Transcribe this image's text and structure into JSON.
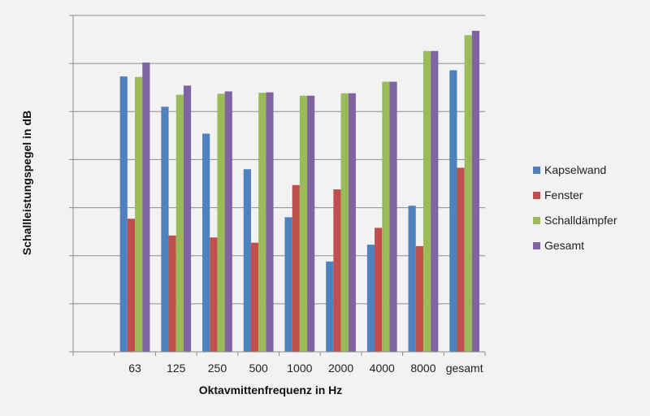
{
  "chart_data": {
    "type": "bar",
    "title": "",
    "xlabel": "Oktavmittenfrequenz in Hz",
    "ylabel": "Schallleistungspegel in dB",
    "categories": [
      "63",
      "125",
      "250",
      "500",
      "1000",
      "2000",
      "4000",
      "8000",
      "gesamt"
    ],
    "ylim": [
      0,
      7
    ],
    "grid": true,
    "legend_position": "right",
    "y_tick_labels_shown": false,
    "series": [
      {
        "name": "Kapselwand",
        "color": "#4f81bd",
        "values": [
          5.73,
          5.1,
          4.54,
          3.8,
          2.8,
          1.88,
          2.23,
          3.04,
          5.86
        ]
      },
      {
        "name": "Fenster",
        "color": "#c0504d",
        "values": [
          2.77,
          2.42,
          2.38,
          2.27,
          3.47,
          3.38,
          2.58,
          2.2,
          3.83
        ]
      },
      {
        "name": "Schalldämpfer",
        "color": "#9bbb59",
        "values": [
          5.72,
          5.35,
          5.37,
          5.39,
          5.33,
          5.38,
          5.62,
          6.26,
          6.59
        ]
      },
      {
        "name": "Gesamt",
        "color": "#8064a2",
        "values": [
          6.02,
          5.54,
          5.42,
          5.4,
          5.33,
          5.38,
          5.62,
          6.26,
          6.68
        ]
      }
    ]
  }
}
